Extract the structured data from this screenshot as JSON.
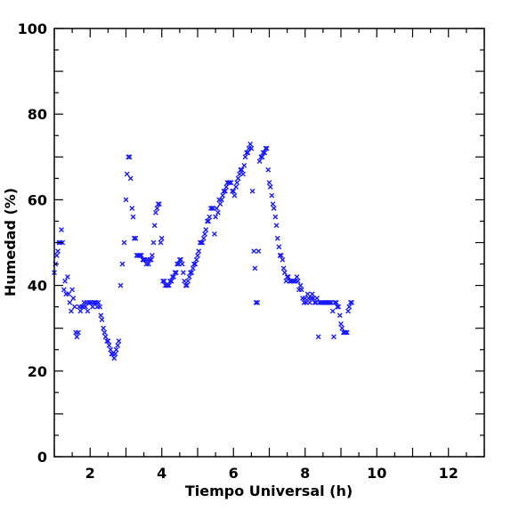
{
  "chart_data": {
    "type": "scatter",
    "title": "",
    "xlabel": "Tiempo Universal (h)",
    "ylabel": "Humedad (%)",
    "xlim": [
      1,
      13
    ],
    "ylim": [
      0,
      100
    ],
    "x_ticks": [
      2,
      4,
      6,
      8,
      10,
      12
    ],
    "y_ticks": [
      0,
      20,
      40,
      60,
      80,
      100
    ],
    "grid": false,
    "legend": "none",
    "marker": "x",
    "color": "#1a1aff",
    "series": [
      {
        "values": [
          [
            1.0,
            43
          ],
          [
            1.03,
            45
          ],
          [
            1.07,
            47
          ],
          [
            1.1,
            48
          ],
          [
            1.13,
            50
          ],
          [
            1.17,
            50
          ],
          [
            1.2,
            53
          ],
          [
            1.23,
            50
          ],
          [
            1.27,
            39
          ],
          [
            1.3,
            41
          ],
          [
            1.33,
            38
          ],
          [
            1.37,
            42
          ],
          [
            1.4,
            38
          ],
          [
            1.43,
            36
          ],
          [
            1.47,
            34
          ],
          [
            1.5,
            39
          ],
          [
            1.53,
            37
          ],
          [
            1.57,
            35
          ],
          [
            1.6,
            29
          ],
          [
            1.63,
            28
          ],
          [
            1.67,
            29
          ],
          [
            1.7,
            35
          ],
          [
            1.73,
            34
          ],
          [
            1.77,
            35
          ],
          [
            1.8,
            35
          ],
          [
            1.83,
            36
          ],
          [
            1.87,
            35
          ],
          [
            1.9,
            36
          ],
          [
            1.93,
            34
          ],
          [
            1.97,
            36
          ],
          [
            2.0,
            36
          ],
          [
            2.03,
            36
          ],
          [
            2.07,
            35
          ],
          [
            2.1,
            36
          ],
          [
            2.13,
            36
          ],
          [
            2.17,
            36
          ],
          [
            2.2,
            35
          ],
          [
            2.23,
            36
          ],
          [
            2.27,
            35
          ],
          [
            2.3,
            33
          ],
          [
            2.33,
            32
          ],
          [
            2.37,
            30
          ],
          [
            2.4,
            29
          ],
          [
            2.43,
            28
          ],
          [
            2.47,
            27
          ],
          [
            2.5,
            27
          ],
          [
            2.53,
            26
          ],
          [
            2.57,
            25
          ],
          [
            2.6,
            24
          ],
          [
            2.63,
            24
          ],
          [
            2.67,
            23
          ],
          [
            2.7,
            24
          ],
          [
            2.73,
            25
          ],
          [
            2.77,
            26
          ],
          [
            2.8,
            27
          ],
          [
            2.85,
            40
          ],
          [
            2.9,
            45
          ],
          [
            2.95,
            50
          ],
          [
            3.0,
            60
          ],
          [
            3.03,
            66
          ],
          [
            3.07,
            70
          ],
          [
            3.1,
            70
          ],
          [
            3.13,
            65
          ],
          [
            3.17,
            58
          ],
          [
            3.2,
            56
          ],
          [
            3.23,
            51
          ],
          [
            3.27,
            51
          ],
          [
            3.3,
            47
          ],
          [
            3.33,
            47
          ],
          [
            3.37,
            47
          ],
          [
            3.4,
            47
          ],
          [
            3.43,
            47
          ],
          [
            3.47,
            46
          ],
          [
            3.5,
            46
          ],
          [
            3.53,
            46
          ],
          [
            3.57,
            45
          ],
          [
            3.6,
            46
          ],
          [
            3.63,
            45
          ],
          [
            3.67,
            46
          ],
          [
            3.7,
            46
          ],
          [
            3.73,
            47
          ],
          [
            3.77,
            50
          ],
          [
            3.8,
            54
          ],
          [
            3.83,
            57
          ],
          [
            3.87,
            58
          ],
          [
            3.9,
            59
          ],
          [
            3.93,
            59
          ],
          [
            3.97,
            50
          ],
          [
            4.0,
            51
          ],
          [
            4.03,
            41
          ],
          [
            4.07,
            41
          ],
          [
            4.1,
            40
          ],
          [
            4.13,
            40
          ],
          [
            4.17,
            40
          ],
          [
            4.2,
            40
          ],
          [
            4.23,
            41
          ],
          [
            4.27,
            41
          ],
          [
            4.3,
            42
          ],
          [
            4.33,
            42
          ],
          [
            4.37,
            43
          ],
          [
            4.4,
            43
          ],
          [
            4.43,
            45
          ],
          [
            4.47,
            45
          ],
          [
            4.5,
            46
          ],
          [
            4.53,
            46
          ],
          [
            4.57,
            45
          ],
          [
            4.6,
            43
          ],
          [
            4.63,
            41
          ],
          [
            4.67,
            40
          ],
          [
            4.7,
            40
          ],
          [
            4.73,
            41
          ],
          [
            4.77,
            42
          ],
          [
            4.8,
            43
          ],
          [
            4.83,
            43
          ],
          [
            4.87,
            44
          ],
          [
            4.9,
            45
          ],
          [
            4.93,
            45
          ],
          [
            4.97,
            46
          ],
          [
            5.0,
            47
          ],
          [
            5.03,
            48
          ],
          [
            5.07,
            50
          ],
          [
            5.1,
            50
          ],
          [
            5.13,
            50
          ],
          [
            5.17,
            51
          ],
          [
            5.2,
            52
          ],
          [
            5.23,
            53
          ],
          [
            5.27,
            55
          ],
          [
            5.3,
            55
          ],
          [
            5.33,
            56
          ],
          [
            5.37,
            58
          ],
          [
            5.4,
            58
          ],
          [
            5.43,
            58
          ],
          [
            5.47,
            52
          ],
          [
            5.5,
            56
          ],
          [
            5.53,
            58
          ],
          [
            5.57,
            57
          ],
          [
            5.6,
            60
          ],
          [
            5.63,
            59
          ],
          [
            5.67,
            60
          ],
          [
            5.7,
            61
          ],
          [
            5.73,
            62
          ],
          [
            5.77,
            62
          ],
          [
            5.8,
            63
          ],
          [
            5.83,
            64
          ],
          [
            5.87,
            64
          ],
          [
            5.9,
            64
          ],
          [
            5.93,
            64
          ],
          [
            5.97,
            62
          ],
          [
            6.0,
            62
          ],
          [
            6.03,
            61
          ],
          [
            6.07,
            63
          ],
          [
            6.1,
            64
          ],
          [
            6.13,
            65
          ],
          [
            6.17,
            66
          ],
          [
            6.2,
            67
          ],
          [
            6.23,
            67
          ],
          [
            6.27,
            66
          ],
          [
            6.3,
            68
          ],
          [
            6.33,
            70
          ],
          [
            6.37,
            71
          ],
          [
            6.4,
            71
          ],
          [
            6.43,
            72
          ],
          [
            6.47,
            73
          ],
          [
            6.5,
            72
          ],
          [
            6.53,
            62
          ],
          [
            6.57,
            48
          ],
          [
            6.6,
            44
          ],
          [
            6.63,
            36
          ],
          [
            6.67,
            36
          ],
          [
            6.7,
            48
          ],
          [
            6.73,
            69
          ],
          [
            6.77,
            70
          ],
          [
            6.8,
            70
          ],
          [
            6.83,
            71
          ],
          [
            6.87,
            71
          ],
          [
            6.9,
            72
          ],
          [
            6.93,
            72
          ],
          [
            6.97,
            67
          ],
          [
            7.0,
            64
          ],
          [
            7.03,
            63
          ],
          [
            7.07,
            61
          ],
          [
            7.1,
            59
          ],
          [
            7.13,
            58
          ],
          [
            7.17,
            56
          ],
          [
            7.2,
            54
          ],
          [
            7.23,
            51
          ],
          [
            7.27,
            49
          ],
          [
            7.3,
            47
          ],
          [
            7.33,
            47
          ],
          [
            7.37,
            46
          ],
          [
            7.4,
            44
          ],
          [
            7.43,
            43
          ],
          [
            7.47,
            41
          ],
          [
            7.5,
            42
          ],
          [
            7.53,
            42
          ],
          [
            7.57,
            41
          ],
          [
            7.6,
            41
          ],
          [
            7.63,
            41
          ],
          [
            7.67,
            41
          ],
          [
            7.7,
            41
          ],
          [
            7.73,
            41
          ],
          [
            7.77,
            42
          ],
          [
            7.8,
            41
          ],
          [
            7.83,
            39
          ],
          [
            7.87,
            40
          ],
          [
            7.9,
            39
          ],
          [
            7.93,
            37
          ],
          [
            7.97,
            36
          ],
          [
            8.0,
            37
          ],
          [
            8.03,
            36
          ],
          [
            8.07,
            38
          ],
          [
            8.1,
            37
          ],
          [
            8.13,
            36
          ],
          [
            8.17,
            37
          ],
          [
            8.2,
            38
          ],
          [
            8.23,
            37
          ],
          [
            8.27,
            36
          ],
          [
            8.3,
            36
          ],
          [
            8.33,
            37
          ],
          [
            8.37,
            28
          ],
          [
            8.4,
            36
          ],
          [
            8.43,
            36
          ],
          [
            8.47,
            36
          ],
          [
            8.5,
            36
          ],
          [
            8.53,
            36
          ],
          [
            8.57,
            36
          ],
          [
            8.6,
            36
          ],
          [
            8.63,
            36
          ],
          [
            8.67,
            36
          ],
          [
            8.7,
            36
          ],
          [
            8.73,
            36
          ],
          [
            8.77,
            34
          ],
          [
            8.8,
            28
          ],
          [
            8.83,
            36
          ],
          [
            8.87,
            36
          ],
          [
            8.9,
            35
          ],
          [
            8.93,
            35
          ],
          [
            8.97,
            33
          ],
          [
            9.0,
            31
          ],
          [
            9.03,
            30
          ],
          [
            9.07,
            29
          ],
          [
            9.1,
            29
          ],
          [
            9.13,
            29
          ],
          [
            9.17,
            29
          ],
          [
            9.2,
            34
          ],
          [
            9.23,
            35
          ],
          [
            9.27,
            36
          ],
          [
            9.3,
            36
          ]
        ]
      }
    ]
  }
}
